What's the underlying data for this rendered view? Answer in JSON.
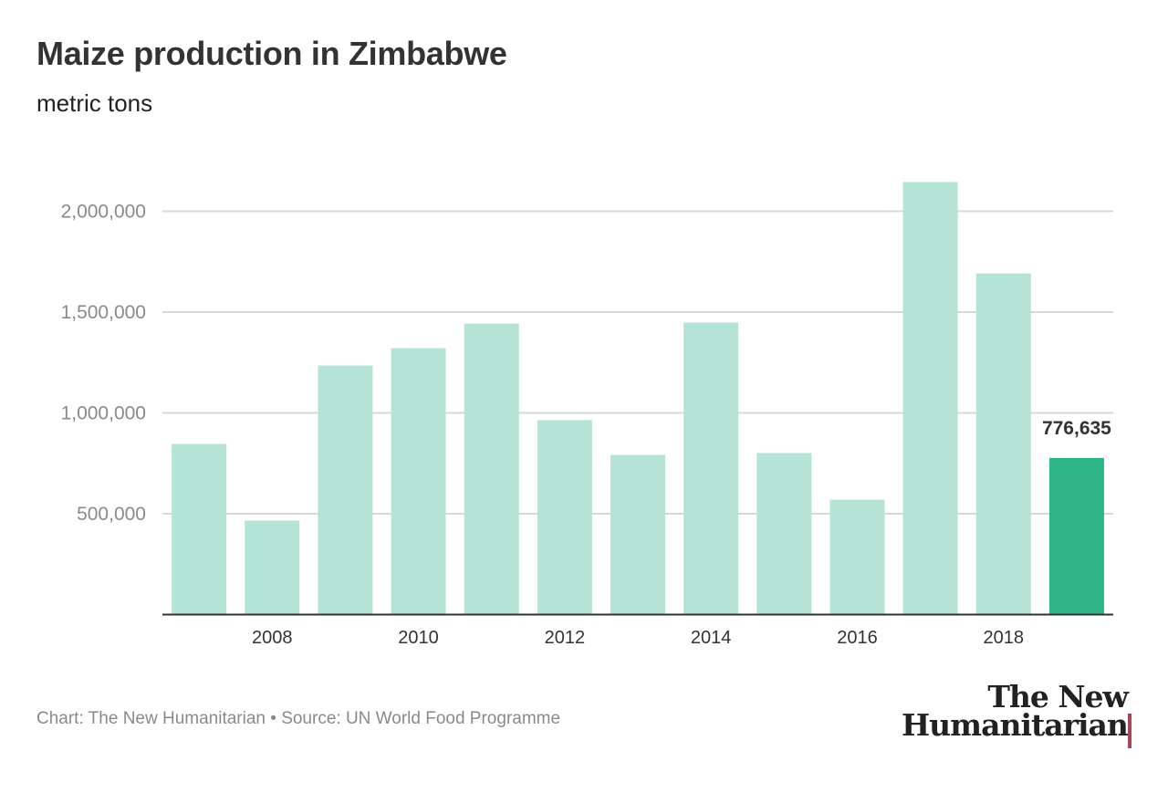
{
  "chart_data": {
    "type": "bar",
    "title": "Maize production in Zimbabwe",
    "subtitle": "metric tons",
    "categories": [
      "2007",
      "2008",
      "2009",
      "2010",
      "2011",
      "2012",
      "2013",
      "2014",
      "2015",
      "2016",
      "2017",
      "2018",
      "2019"
    ],
    "values": [
      846000,
      466000,
      1235000,
      1321000,
      1443000,
      964000,
      792000,
      1448000,
      801000,
      570000,
      2145000,
      1692000,
      776635
    ],
    "x_tick_labels": [
      "2008",
      "2010",
      "2012",
      "2014",
      "2016",
      "2018"
    ],
    "y_ticks": [
      500000,
      1000000,
      1500000,
      2000000
    ],
    "y_tick_labels": [
      "500,000",
      "1,000,000",
      "1,500,000",
      "2,000,000"
    ],
    "ylim": [
      0,
      2150000
    ],
    "grid": true,
    "highlight": {
      "category": "2019",
      "label": "776,635"
    },
    "colors": {
      "bar": "#b5e4d6",
      "highlight": "#2db587",
      "grid": "#d8d8d8",
      "axis": "#333333"
    }
  },
  "footer": "Chart: The New Humanitarian • Source: UN World Food Programme",
  "logo": {
    "line1": "The New",
    "line2": "Humanitarian"
  }
}
